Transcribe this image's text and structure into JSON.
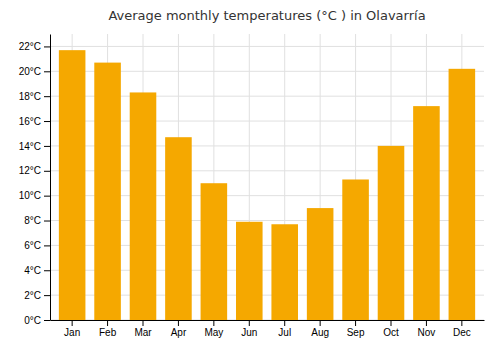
{
  "chart_data": {
    "type": "bar",
    "title": "Average monthly temperatures (°C ) in Olavarría",
    "categories": [
      "Jan",
      "Feb",
      "Mar",
      "Apr",
      "May",
      "Jun",
      "Jul",
      "Aug",
      "Sep",
      "Oct",
      "Nov",
      "Dec"
    ],
    "values": [
      21.7,
      20.7,
      18.3,
      14.7,
      11.0,
      7.9,
      7.7,
      9.0,
      11.3,
      14.0,
      17.2,
      20.2
    ],
    "color": "#F5A800",
    "ylim": [
      0,
      23
    ],
    "yticks": [
      {
        "value": 0,
        "label": "0°C"
      },
      {
        "value": 2,
        "label": "2°C"
      },
      {
        "value": 4,
        "label": "4°C"
      },
      {
        "value": 6,
        "label": "6°C"
      },
      {
        "value": 8,
        "label": "8°C"
      },
      {
        "value": 10,
        "label": "10°C"
      },
      {
        "value": 12,
        "label": "12°C"
      },
      {
        "value": 14,
        "label": "14°C"
      },
      {
        "value": 16,
        "label": "16°C"
      },
      {
        "value": 18,
        "label": "18°C"
      },
      {
        "value": 20,
        "label": "20°C"
      },
      {
        "value": 22,
        "label": "22°C"
      }
    ],
    "grid": true
  }
}
